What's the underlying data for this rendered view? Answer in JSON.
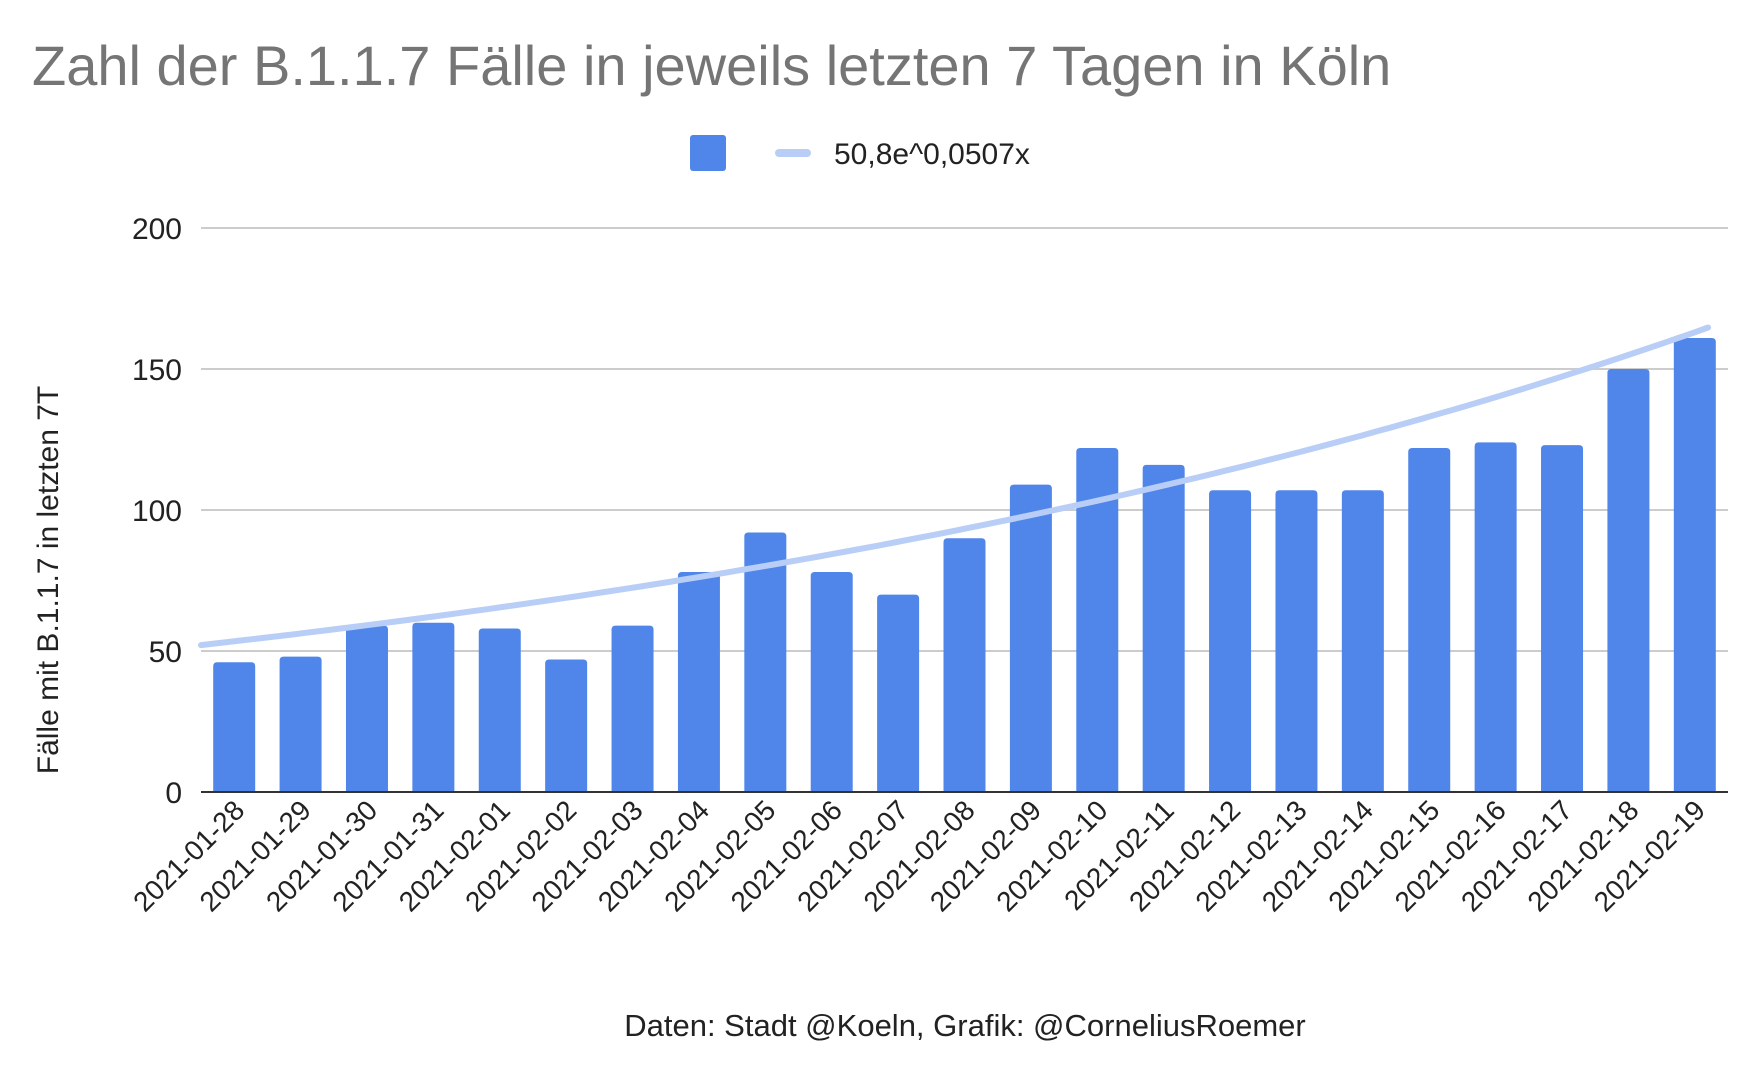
{
  "chart_data": {
    "type": "bar",
    "title": "Zahl der B.1.1.7 Fälle in jeweils letzten 7 Tagen in Köln",
    "xlabel": "",
    "ylabel": "Fälle mit B.1.1.7 in letzten 7T",
    "footer": "Daten: Stadt @Koeln, Grafik: @CorneliusRoemer",
    "ylim": [
      0,
      200
    ],
    "yticks": [
      0,
      50,
      100,
      150,
      200
    ],
    "grid": true,
    "legend_position": "top",
    "categories": [
      "2021-01-28",
      "2021-01-29",
      "2021-01-30",
      "2021-01-31",
      "2021-02-01",
      "2021-02-02",
      "2021-02-03",
      "2021-02-04",
      "2021-02-05",
      "2021-02-06",
      "2021-02-07",
      "2021-02-08",
      "2021-02-09",
      "2021-02-10",
      "2021-02-11",
      "2021-02-12",
      "2021-02-13",
      "2021-02-14",
      "2021-02-15",
      "2021-02-16",
      "2021-02-17",
      "2021-02-18",
      "2021-02-19"
    ],
    "series": [
      {
        "name": "",
        "type": "bar",
        "color": "#5086EA",
        "values": [
          46,
          48,
          59,
          60,
          58,
          47,
          59,
          78,
          92,
          78,
          70,
          90,
          109,
          122,
          116,
          107,
          107,
          107,
          122,
          124,
          123,
          150,
          161
        ]
      },
      {
        "name": "50,8e^0,0507x",
        "type": "trendline",
        "color": "#B9CEF6",
        "a": 50.8,
        "b": 0.0507
      }
    ]
  }
}
